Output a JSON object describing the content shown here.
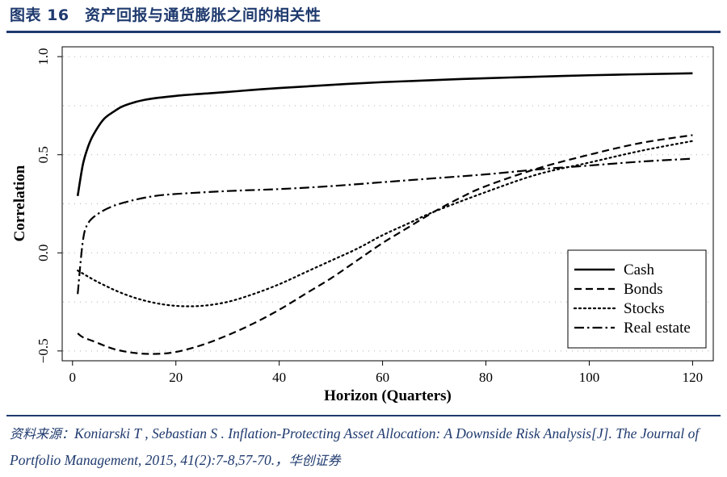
{
  "figure": {
    "title": "图表 16　资产回报与通货膨胀之间的相关性"
  },
  "source": {
    "prefix": "资料来源：",
    "text": "Koniarski T , Sebastian S . Inflation-Protecting Asset Allocation: A Downside Risk Analysis[J]. The Journal of Portfolio Management, 2015, 41(2):7-8,57-70.，",
    "suffix": "华创证券"
  },
  "colors": {
    "navy": "#1f3a6e",
    "line": "#000000",
    "grid": "#b0b0b0"
  },
  "chart_data": {
    "type": "line",
    "title": "",
    "xlabel": "Horizon (Quarters)",
    "ylabel": "Correlation",
    "xlim": [
      -2,
      124
    ],
    "ylim": [
      -0.55,
      1.05
    ],
    "xticks": [
      0,
      20,
      40,
      60,
      80,
      100,
      120
    ],
    "xtick_labels": [
      "0",
      "20",
      "40",
      "60",
      "80",
      "100",
      "120"
    ],
    "yticks": [
      -0.5,
      0,
      0.5,
      1
    ],
    "ytick_labels": [
      "−0.5",
      "0.0",
      "0.5",
      "1.0"
    ],
    "grid": "horizontal dotted",
    "legend_position": "bottom-right",
    "series": [
      {
        "name": "Cash",
        "style": "solid",
        "x": [
          1,
          2,
          3,
          4,
          6,
          8,
          10,
          14,
          20,
          30,
          40,
          60,
          80,
          100,
          120
        ],
        "y": [
          0.29,
          0.45,
          0.54,
          0.6,
          0.68,
          0.72,
          0.75,
          0.78,
          0.8,
          0.82,
          0.84,
          0.87,
          0.89,
          0.905,
          0.915
        ]
      },
      {
        "name": "Bonds",
        "style": "dashed",
        "x": [
          1,
          2,
          4,
          8,
          12,
          16,
          20,
          25,
          30,
          35,
          40,
          45,
          50,
          55,
          60,
          65,
          70,
          75,
          80,
          90,
          100,
          110,
          120
        ],
        "y": [
          -0.41,
          -0.43,
          -0.45,
          -0.49,
          -0.51,
          -0.515,
          -0.505,
          -0.47,
          -0.42,
          -0.36,
          -0.29,
          -0.21,
          -0.13,
          -0.04,
          0.05,
          0.13,
          0.21,
          0.28,
          0.34,
          0.43,
          0.5,
          0.56,
          0.6
        ]
      },
      {
        "name": "Stocks",
        "style": "dotted",
        "x": [
          1,
          5,
          10,
          15,
          20,
          25,
          30,
          35,
          40,
          45,
          50,
          55,
          60,
          65,
          70,
          80,
          90,
          100,
          110,
          120
        ],
        "y": [
          -0.09,
          -0.15,
          -0.21,
          -0.25,
          -0.27,
          -0.27,
          -0.25,
          -0.21,
          -0.16,
          -0.1,
          -0.04,
          0.02,
          0.09,
          0.15,
          0.21,
          0.31,
          0.4,
          0.46,
          0.52,
          0.57
        ]
      },
      {
        "name": "Real estate",
        "style": "dash-dot",
        "x": [
          1,
          2,
          3,
          5,
          8,
          12,
          16,
          20,
          30,
          40,
          50,
          60,
          70,
          80,
          90,
          100,
          110,
          120
        ],
        "y": [
          -0.21,
          0.06,
          0.15,
          0.2,
          0.24,
          0.27,
          0.29,
          0.3,
          0.315,
          0.325,
          0.34,
          0.36,
          0.38,
          0.4,
          0.425,
          0.445,
          0.465,
          0.48
        ]
      }
    ]
  }
}
